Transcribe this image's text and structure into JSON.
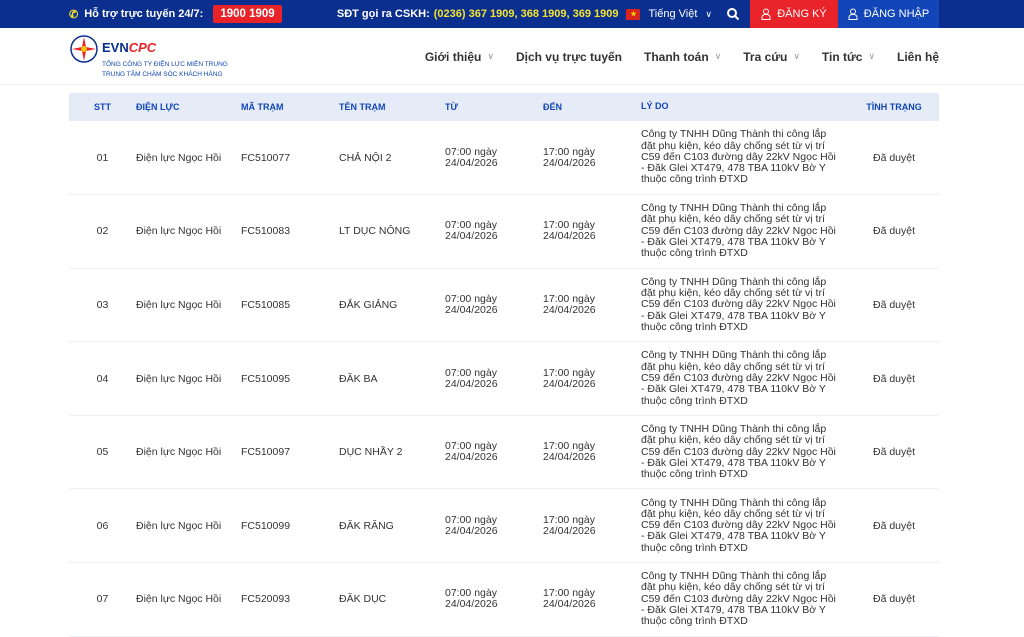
{
  "topbar": {
    "support_label": "Hỗ trợ trực tuyến 24/7:",
    "hotline": "1900 1909",
    "cskh_label": "SĐT gọi ra CSKH:",
    "cskh_numbers": "(0236) 367 1909, 368 1909, 369 1909",
    "language": "Tiếng Việt",
    "register": "ĐĂNG KÝ",
    "login": "ĐĂNG NHẬP"
  },
  "logo": {
    "brand_a": "EVN",
    "brand_b": "CPC",
    "line1": "TỔNG CÔNG TY ĐIỆN LỰC MIỀN TRUNG",
    "line2": "TRUNG TÂM CHĂM SÓC KHÁCH HÀNG"
  },
  "nav": [
    "Giới thiệu",
    "Dịch vụ trực tuyến",
    "Thanh toán",
    "Tra cứu",
    "Tin tức",
    "Liên hệ"
  ],
  "colors": {
    "navy": "#0b2f8f",
    "red": "#e8232a",
    "blue": "#1246b8",
    "header_bg": "#e5ecf7"
  },
  "table": {
    "headers": [
      "STT",
      "ĐIỆN LỰC",
      "MÃ TRẠM",
      "TÊN TRẠM",
      "TỪ",
      "ĐẾN",
      "LÝ DO",
      "TÌNH TRẠNG"
    ],
    "rows": [
      {
        "stt": "01",
        "dl": "Điện lực Ngọc Hồi",
        "ma": "FC510077",
        "ten": "CHẢ NỘI 2",
        "tu": "07:00 ngày 24/04/2026",
        "den": "17:00 ngày 24/04/2026",
        "lydo": "Công ty TNHH Dũng Thành thi công lắp đặt phụ kiện, kéo dây chống sét từ vị trí C59 đến C103 đường dây 22kV Ngọc Hồi - Đăk Glei XT479, 478 TBA 110kV Bờ Y thuộc công trình ĐTXD",
        "tt": "Đã duyệt"
      },
      {
        "stt": "02",
        "dl": "Điện lực Ngọc Hồi",
        "ma": "FC510083",
        "ten": "LT DỤC NÔNG",
        "tu": "07:00 ngày 24/04/2026",
        "den": "17:00 ngày 24/04/2026",
        "lydo": "Công ty TNHH Dũng Thành thi công lắp đặt phụ kiện, kéo dây chống sét từ vị trí C59 đến C103 đường dây 22kV Ngọc Hồi - Đăk Glei XT479, 478 TBA 110kV Bờ Y thuộc công trình ĐTXD",
        "tt": "Đã duyệt"
      },
      {
        "stt": "03",
        "dl": "Điện lực Ngọc Hồi",
        "ma": "FC510085",
        "ten": "ĐẮK GIẢNG",
        "tu": "07:00 ngày 24/04/2026",
        "den": "17:00 ngày 24/04/2026",
        "lydo": "Công ty TNHH Dũng Thành thi công lắp đặt phụ kiện, kéo dây chống sét từ vị trí C59 đến C103 đường dây 22kV Ngọc Hồi - Đăk Glei XT479, 478 TBA 110kV Bờ Y thuộc công trình ĐTXD",
        "tt": "Đã duyệt"
      },
      {
        "stt": "04",
        "dl": "Điện lực Ngọc Hồi",
        "ma": "FC510095",
        "ten": "ĐĂK BA",
        "tu": "07:00 ngày 24/04/2026",
        "den": "17:00 ngày 24/04/2026",
        "lydo": "Công ty TNHH Dũng Thành thi công lắp đặt phụ kiện, kéo dây chống sét từ vị trí C59 đến C103 đường dây 22kV Ngọc Hồi - Đăk Glei XT479, 478 TBA 110kV Bờ Y thuộc công trình ĐTXD",
        "tt": "Đã duyệt"
      },
      {
        "stt": "05",
        "dl": "Điện lực Ngọc Hồi",
        "ma": "FC510097",
        "ten": "DỤC NHẦY 2",
        "tu": "07:00 ngày 24/04/2026",
        "den": "17:00 ngày 24/04/2026",
        "lydo": "Công ty TNHH Dũng Thành thi công lắp đặt phụ kiện, kéo dây chống sét từ vị trí C59 đến C103 đường dây 22kV Ngọc Hồi - Đăk Glei XT479, 478 TBA 110kV Bờ Y thuộc công trình ĐTXD",
        "tt": "Đã duyệt"
      },
      {
        "stt": "06",
        "dl": "Điện lực Ngọc Hồi",
        "ma": "FC510099",
        "ten": "ĐĂK RĂNG",
        "tu": "07:00 ngày 24/04/2026",
        "den": "17:00 ngày 24/04/2026",
        "lydo": "Công ty TNHH Dũng Thành thi công lắp đặt phụ kiện, kéo dây chống sét từ vị trí C59 đến C103 đường dây 22kV Ngọc Hồi - Đăk Glei XT479, 478 TBA 110kV Bờ Y thuộc công trình ĐTXD",
        "tt": "Đã duyệt"
      },
      {
        "stt": "07",
        "dl": "Điện lực Ngọc Hồi",
        "ma": "FC520093",
        "ten": "ĐĂK DỤC",
        "tu": "07:00 ngày 24/04/2026",
        "den": "17:00 ngày 24/04/2026",
        "lydo": "Công ty TNHH Dũng Thành thi công lắp đặt phụ kiện, kéo dây chống sét từ vị trí C59 đến C103 đường dây 22kV Ngọc Hồi - Đăk Glei XT479, 478 TBA 110kV Bờ Y thuộc công trình ĐTXD",
        "tt": "Đã duyệt"
      }
    ]
  }
}
